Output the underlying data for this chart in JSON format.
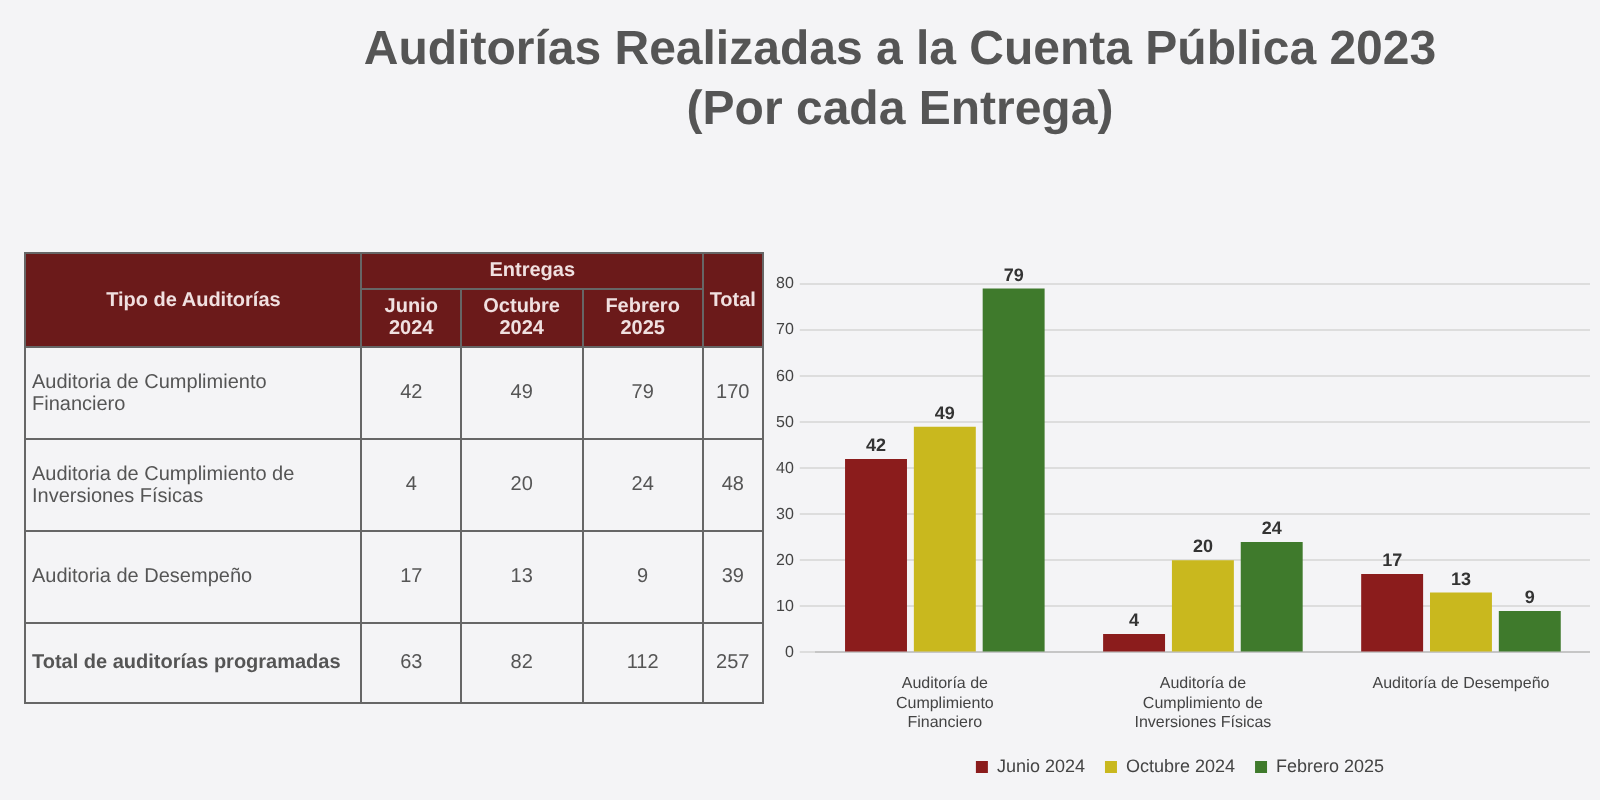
{
  "chart_data": {
    "type": "bar",
    "title": "Auditorías Realizadas a la Cuenta Pública 2023",
    "subtitle": "(Por cada Entrega)",
    "categories": [
      "Auditoría de Cumplimiento Financiero",
      "Auditoría de Cumplimiento de Inversiones Físicas",
      "Auditoría de Desempeño"
    ],
    "series": [
      {
        "name": "Junio 2024",
        "color": "#8b1c1c",
        "values": [
          42,
          4,
          17
        ]
      },
      {
        "name": "Octubre 2024",
        "color": "#c9b81e",
        "values": [
          49,
          20,
          13
        ]
      },
      {
        "name": "Febrero 2025",
        "color": "#3f7a2c",
        "values": [
          79,
          24,
          9
        ]
      }
    ],
    "ylim": [
      0,
      80
    ],
    "yticks": [
      0,
      10,
      20,
      30,
      40,
      50,
      60,
      70,
      80
    ],
    "grid": "y",
    "legend": "bottom",
    "data_labels": true,
    "annotations": [
      "Tipo de Auditorías",
      "Entregas",
      "Total",
      "Junio 2024",
      "Octubre 2024",
      "Febrero 2025",
      "Auditoria de Cumplimiento Financiero",
      "42",
      "49",
      "79",
      "170",
      "Auditoria de Cumplimiento de Inversiones Físicas",
      "4",
      "20",
      "24",
      "48",
      "Auditoria de Desempeño",
      "17",
      "13",
      "9",
      "39",
      "Total de auditorías programadas",
      "63",
      "82",
      "112",
      "257"
    ]
  }
}
